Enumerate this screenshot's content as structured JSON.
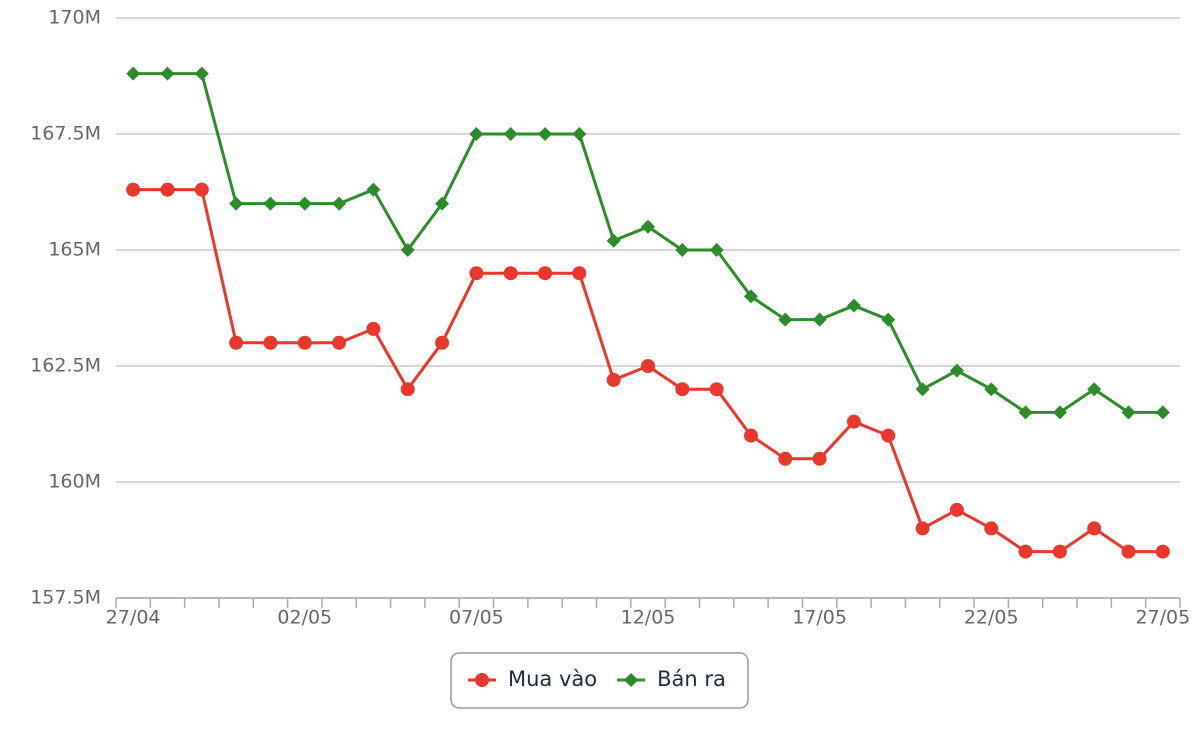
{
  "chart_data": {
    "type": "line",
    "categories": [
      "27/04",
      null,
      null,
      null,
      null,
      "02/05",
      null,
      null,
      null,
      null,
      "07/05",
      null,
      null,
      null,
      null,
      "12/05",
      null,
      null,
      null,
      null,
      "17/05",
      null,
      null,
      null,
      null,
      "22/05",
      null,
      null,
      null,
      null,
      "27/05"
    ],
    "series": [
      {
        "name": "Mua vào",
        "color": "#e8372c",
        "marker": "circle",
        "values": [
          166.3,
          166.3,
          166.3,
          163.0,
          163.0,
          163.0,
          163.0,
          163.3,
          162.0,
          163.0,
          164.5,
          164.5,
          164.5,
          164.5,
          162.2,
          162.5,
          162.0,
          162.0,
          161.0,
          160.5,
          160.5,
          161.3,
          161.0,
          159.0,
          159.4,
          159.0,
          158.5,
          158.5,
          159.0,
          158.5,
          158.5
        ]
      },
      {
        "name": "Bán ra",
        "color": "#2e8b2b",
        "marker": "diamond",
        "values": [
          168.8,
          168.8,
          168.8,
          166.0,
          166.0,
          166.0,
          166.0,
          166.3,
          165.0,
          166.0,
          167.5,
          167.5,
          167.5,
          167.5,
          165.2,
          165.5,
          165.0,
          165.0,
          164.0,
          163.5,
          163.5,
          163.8,
          163.5,
          162.0,
          162.4,
          162.0,
          161.5,
          161.5,
          162.0,
          161.5,
          161.5
        ]
      }
    ],
    "ylim": [
      157.5,
      170
    ],
    "yticks": [
      {
        "value": 157.5,
        "label": "157.5M"
      },
      {
        "value": 160,
        "label": "160M"
      },
      {
        "value": 162.5,
        "label": "162.5M"
      },
      {
        "value": 165,
        "label": "165M"
      },
      {
        "value": 167.5,
        "label": "167.5M"
      },
      {
        "value": 170,
        "label": "170M"
      }
    ],
    "grid": true,
    "legend": "bottom"
  }
}
